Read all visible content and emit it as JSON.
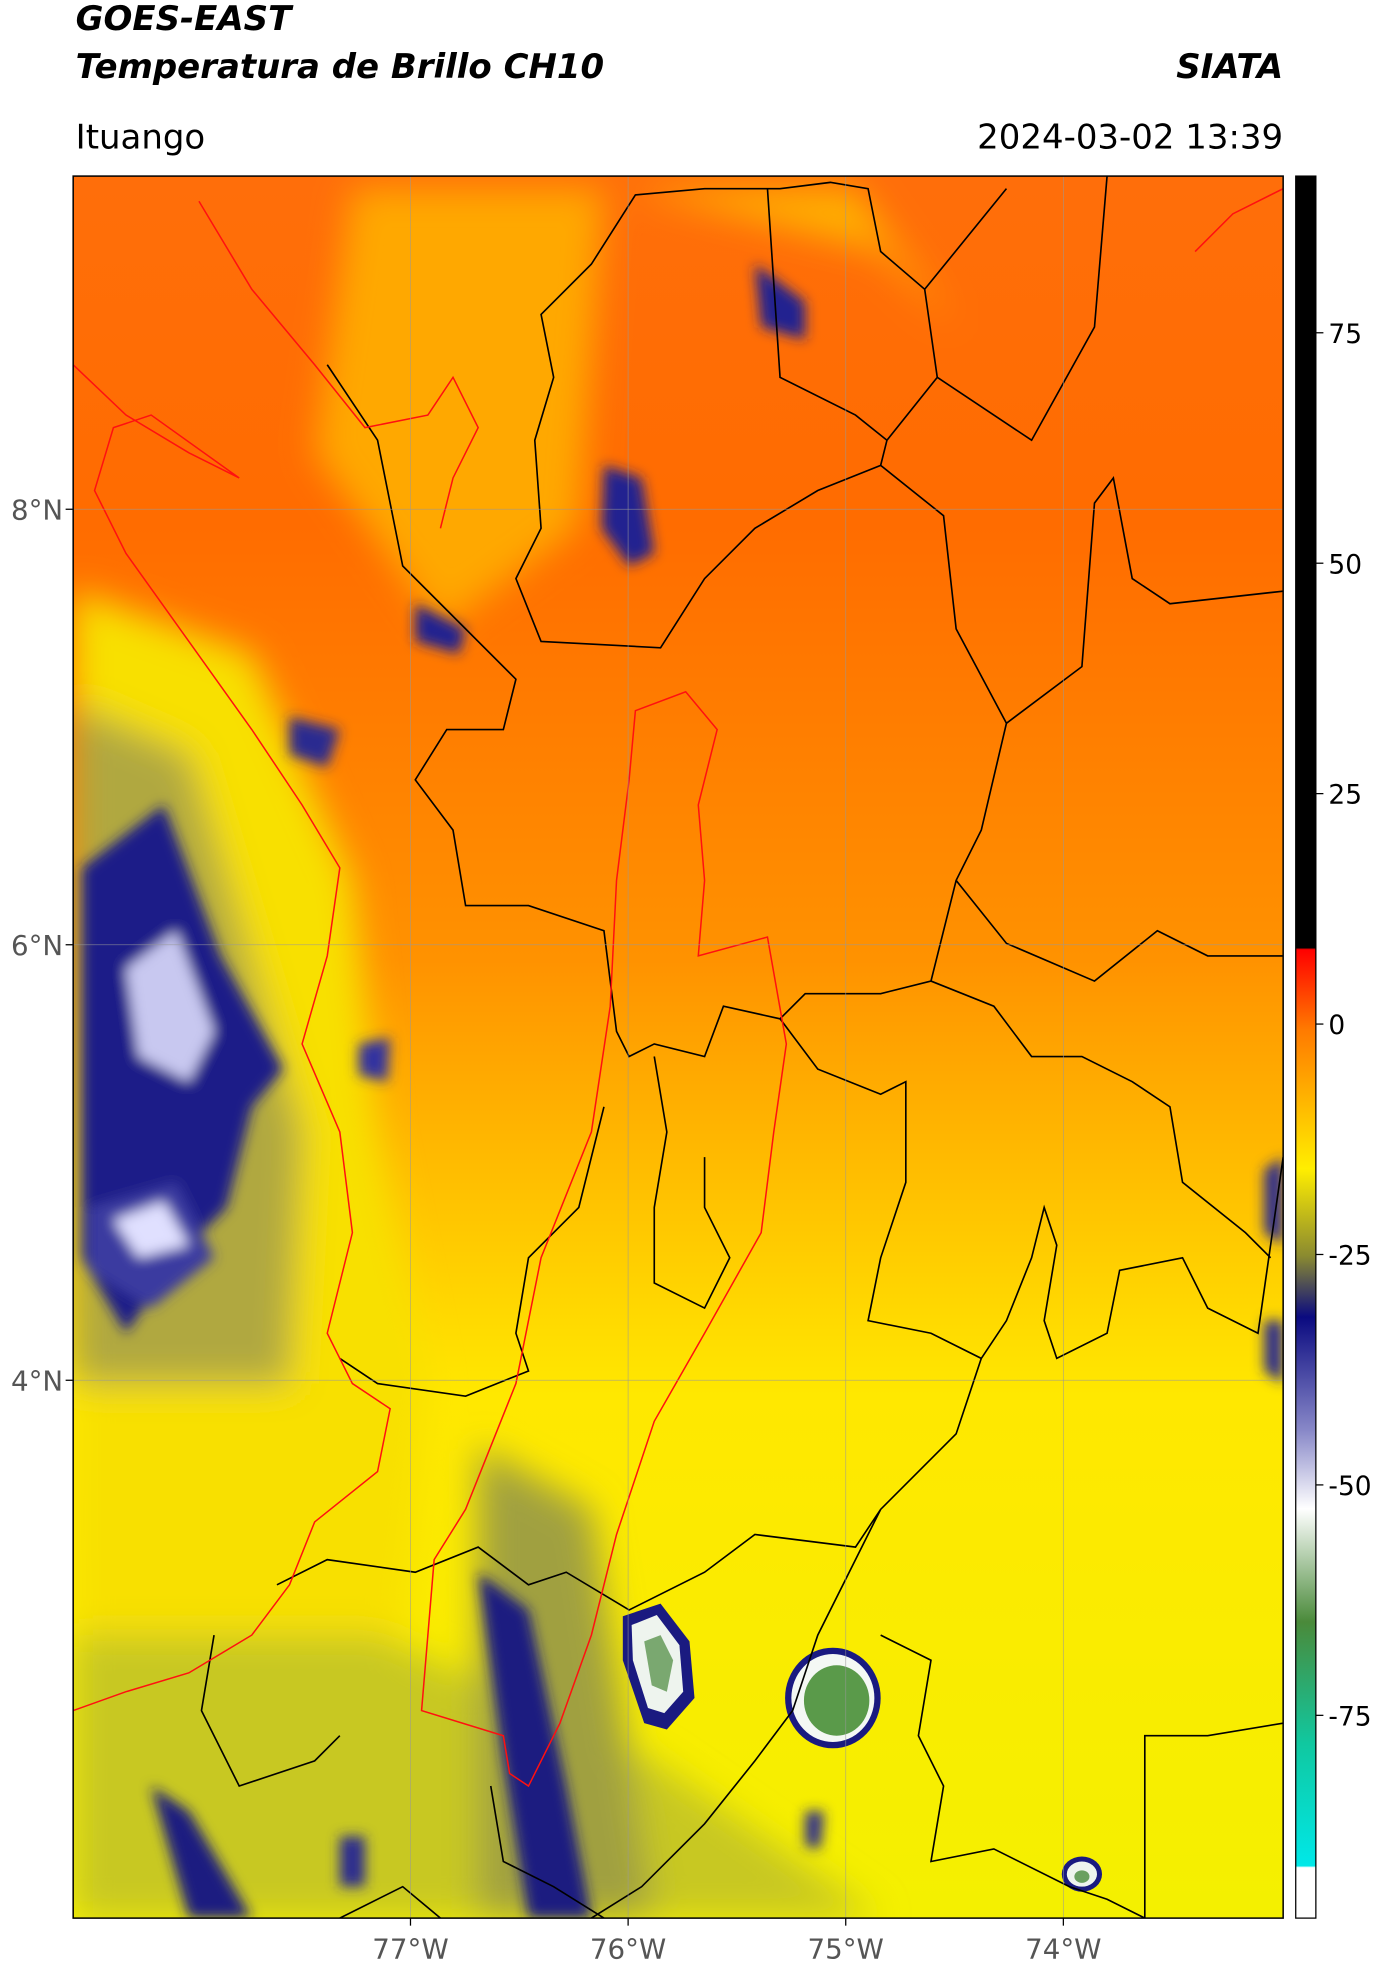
{
  "header": {
    "title": "GOES-EAST",
    "subtitle": "Temperatura de Brillo CH10",
    "source": "SIATA",
    "location": "Ituango",
    "timestamp": "2024-03-02 13:39"
  },
  "map": {
    "xlim": [
      -78.55,
      -72.99
    ],
    "ylim": [
      1.53,
      9.53
    ],
    "grid": true,
    "xticks": [
      {
        "value": -77,
        "label": "77°W"
      },
      {
        "value": -76,
        "label": "76°W"
      },
      {
        "value": -75,
        "label": "75°W"
      },
      {
        "value": -74,
        "label": "74°W"
      }
    ],
    "yticks": [
      {
        "value": 8,
        "label": "8°N"
      },
      {
        "value": 6,
        "label": "6°N"
      },
      {
        "value": 4,
        "label": "4°N"
      }
    ]
  },
  "colorbar": {
    "lim": [
      -97,
      92
    ],
    "ticks": [
      75,
      50,
      25,
      0,
      -25,
      -50,
      -75
    ]
  }
}
